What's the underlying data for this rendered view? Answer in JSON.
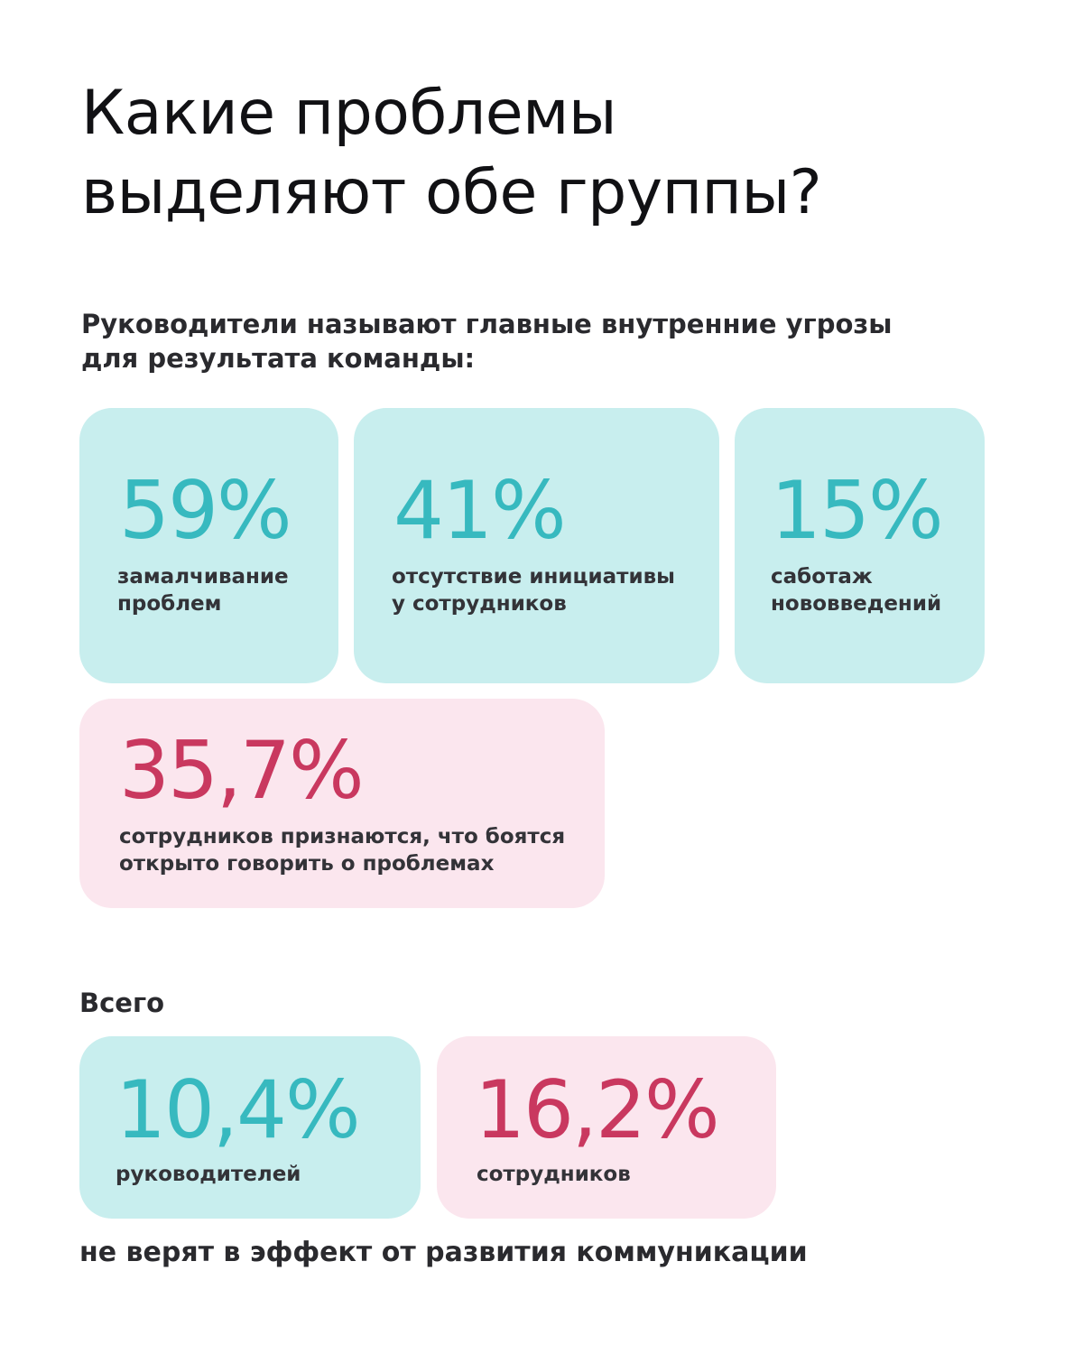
{
  "header": {
    "title_lines": [
      "Какие проблемы",
      "выделяют обе группы?"
    ]
  },
  "intro": {
    "lines": [
      "Руководители называют главные внутренние угрозы",
      "для результата команды:"
    ]
  },
  "threat_cards": [
    {
      "value": "59%",
      "caption_lines": [
        "замалчивание",
        "проблем"
      ],
      "color": "#37b9bf"
    },
    {
      "value": "41%",
      "caption_lines": [
        "отсутствие инициативы",
        "у сотрудников"
      ],
      "color": "#37b9bf"
    },
    {
      "value": "15%",
      "caption_lines": [
        "саботаж",
        "нововведений"
      ],
      "color": "#37b9bf"
    }
  ],
  "employee_card": {
    "value": "35,7%",
    "caption_lines": [
      "сотрудников признаются, что боятся",
      "открыто говорить о проблемах"
    ],
    "color": "#c9385f"
  },
  "totals": {
    "label": "Всего",
    "cards": [
      {
        "value": "10,4%",
        "caption": "руководителей",
        "color": "#37b9bf"
      },
      {
        "value": "16,2%",
        "caption": "сотрудников",
        "color": "#c9385f"
      }
    ],
    "footer": "не верят в эффект от развития коммуникации"
  },
  "colors": {
    "teal_bg": "#c8eeee",
    "teal_text": "#37b9bf",
    "pink_bg": "#fbe6ee",
    "pink_text": "#c9385f"
  }
}
